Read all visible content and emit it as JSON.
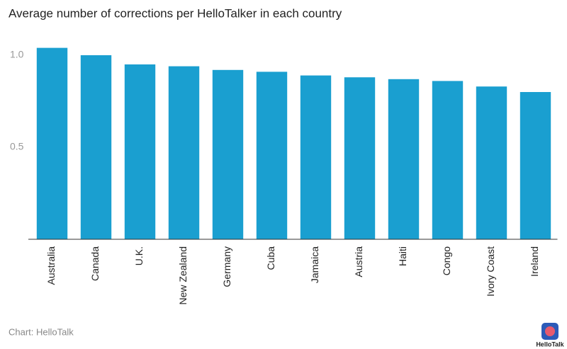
{
  "chart_data": {
    "type": "bar",
    "title": "Average number of corrections per HelloTalker in each country",
    "categories": [
      "Australia",
      "Canada",
      "U.K.",
      "New Zealand",
      "Germany",
      "Cuba",
      "Jamaica",
      "Austria",
      "Haiti",
      "Congo",
      "Ivory Coast",
      "Ireland"
    ],
    "values": [
      1.04,
      1.0,
      0.95,
      0.94,
      0.92,
      0.91,
      0.89,
      0.88,
      0.87,
      0.86,
      0.83,
      0.8
    ],
    "color": "#1a9fd0",
    "ylim": [
      0,
      1.1
    ],
    "yticks": [
      0.5,
      {
        "value": 1,
        "label": "1.0"
      }
    ],
    "grid": false,
    "source": "Chart: HelloTalk",
    "logo_text": "HelloTalk"
  }
}
